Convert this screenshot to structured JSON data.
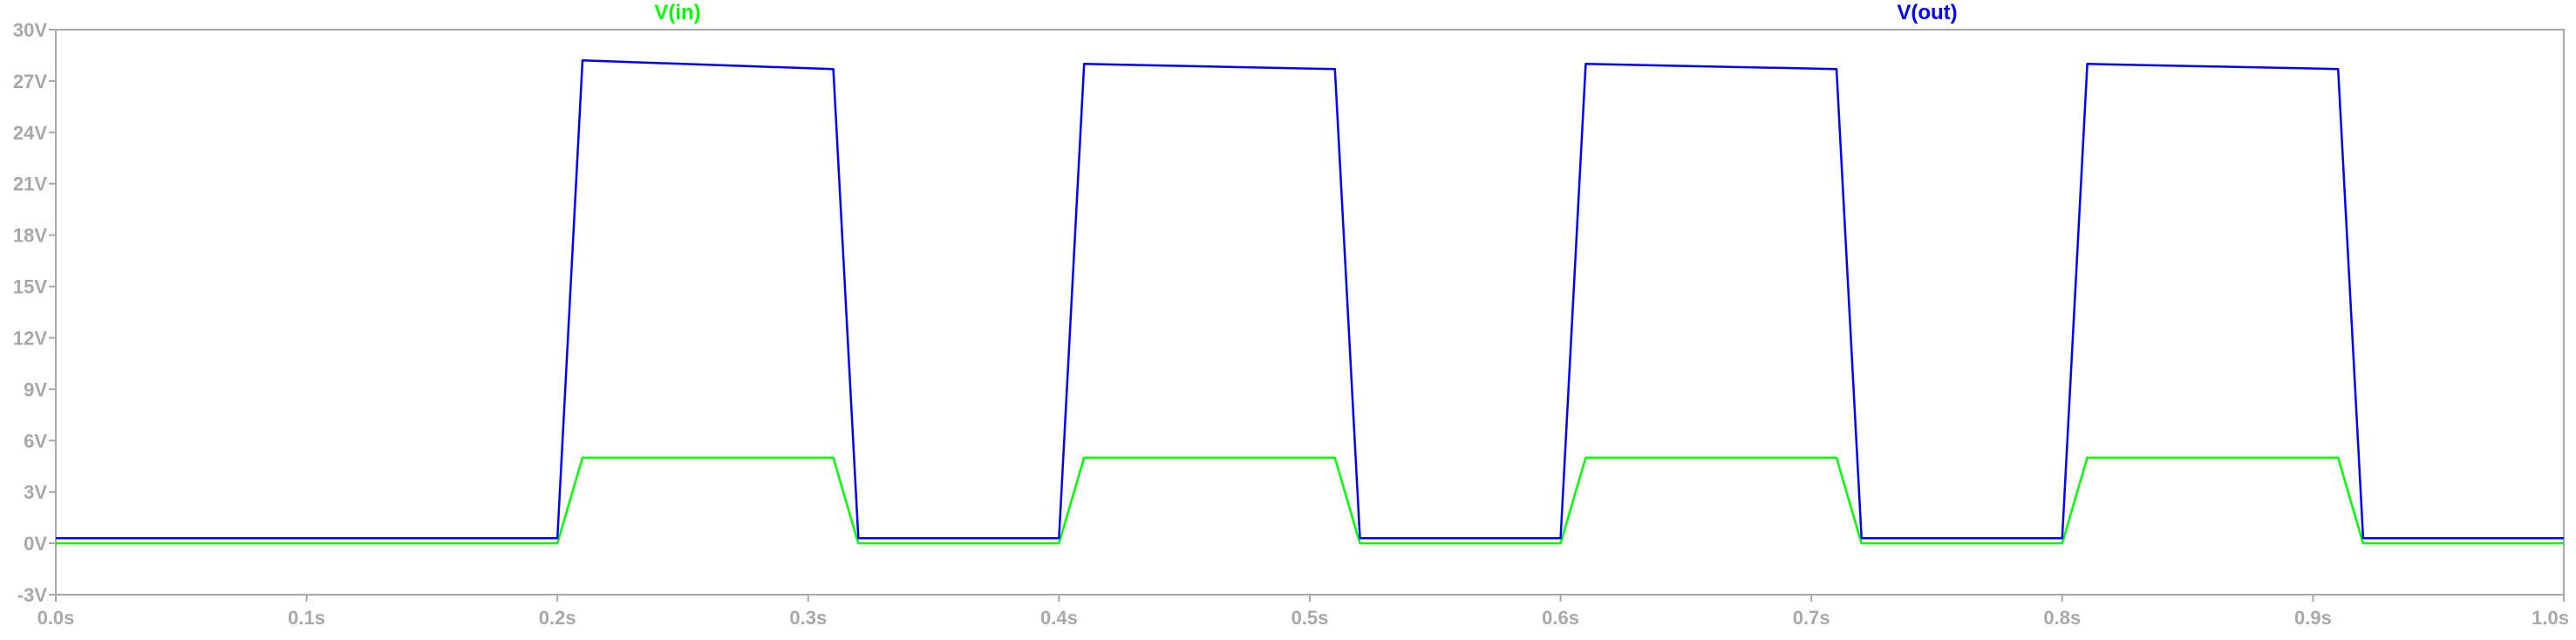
{
  "chart_data": {
    "type": "line",
    "title": "",
    "xlabel": "",
    "ylabel": "",
    "xlim": [
      0.0,
      1.0
    ],
    "ylim": [
      -3,
      30
    ],
    "x_ticks": [
      "0.0s",
      "0.1s",
      "0.2s",
      "0.3s",
      "0.4s",
      "0.5s",
      "0.6s",
      "0.7s",
      "0.8s",
      "0.9s",
      "1.0s"
    ],
    "y_ticks": [
      "-3V",
      "0V",
      "3V",
      "6V",
      "9V",
      "12V",
      "15V",
      "18V",
      "21V",
      "24V",
      "27V",
      "30V"
    ],
    "y_tick_values": [
      -3,
      0,
      3,
      6,
      9,
      12,
      15,
      18,
      21,
      24,
      27,
      30
    ],
    "x_tick_values": [
      0.0,
      0.1,
      0.2,
      0.3,
      0.4,
      0.5,
      0.6,
      0.7,
      0.8,
      0.9,
      1.0
    ],
    "grid": false,
    "axis_color": "#a8a8a8",
    "series": [
      {
        "name": "V(in)",
        "color": "#00ff00",
        "x": [
          0.0,
          0.2,
          0.21,
          0.31,
          0.32,
          0.4,
          0.41,
          0.51,
          0.52,
          0.6,
          0.61,
          0.71,
          0.72,
          0.8,
          0.81,
          0.91,
          0.92,
          1.0
        ],
        "y": [
          0.0,
          0.0,
          5.0,
          5.0,
          0.0,
          0.0,
          5.0,
          5.0,
          0.0,
          0.0,
          5.0,
          5.0,
          0.0,
          0.0,
          5.0,
          5.0,
          0.0,
          0.0
        ]
      },
      {
        "name": "V(out)",
        "color": "#0000ff",
        "x": [
          0.0,
          0.2,
          0.21,
          0.31,
          0.32,
          0.4,
          0.41,
          0.51,
          0.52,
          0.6,
          0.61,
          0.71,
          0.72,
          0.8,
          0.81,
          0.91,
          0.92,
          1.0
        ],
        "y": [
          0.3,
          0.3,
          28.2,
          27.7,
          0.3,
          0.3,
          28.0,
          27.7,
          0.3,
          0.3,
          28.0,
          27.7,
          0.3,
          0.3,
          28.0,
          27.7,
          0.3,
          0.3
        ]
      }
    ]
  }
}
